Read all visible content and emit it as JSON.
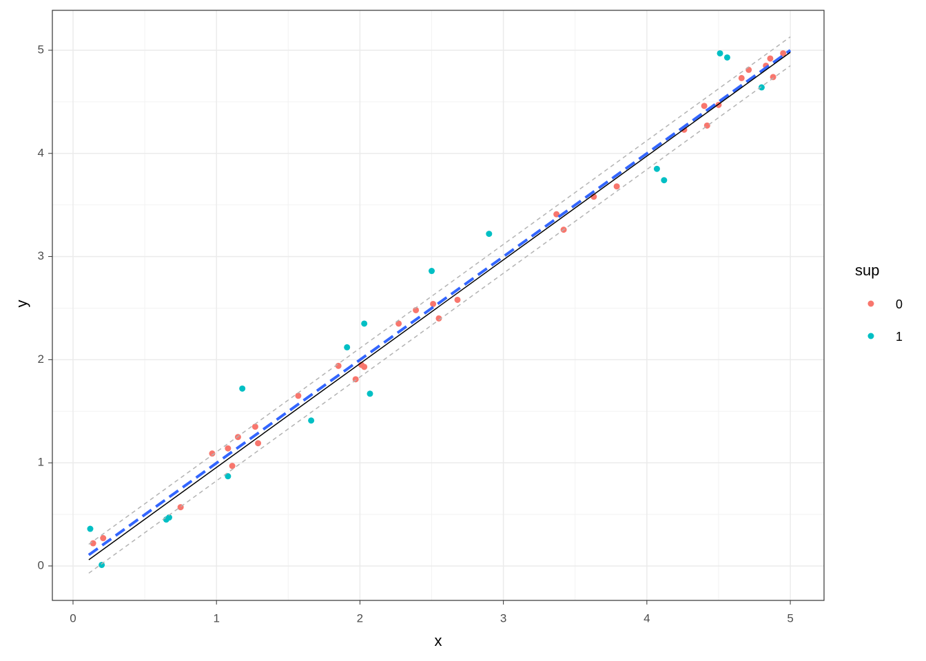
{
  "chart_data": {
    "type": "scatter",
    "x_label": "x",
    "y_label": "y",
    "legend_title": "sup",
    "legend_position": "right",
    "grid": true,
    "minor_grid": true,
    "xlim": [
      -0.144,
      5.235
    ],
    "ylim": [
      -0.334,
      5.387
    ],
    "xticks": [
      0,
      1,
      2,
      3,
      4,
      5
    ],
    "yticks": [
      0,
      1,
      2,
      3,
      4,
      5
    ],
    "series": [
      {
        "name": "0",
        "color": "#F8766D",
        "x": [
          0.14,
          0.21,
          0.75,
          0.97,
          1.08,
          1.11,
          1.15,
          1.27,
          1.29,
          1.57,
          1.85,
          1.97,
          2.01,
          2.03,
          2.27,
          2.39,
          2.51,
          2.55,
          2.68,
          3.37,
          3.42,
          3.63,
          3.79,
          4.26,
          4.4,
          4.42,
          4.5,
          4.66,
          4.71,
          4.83,
          4.86,
          4.88,
          4.95
        ],
        "values": [
          0.22,
          0.27,
          0.57,
          1.09,
          1.14,
          0.97,
          1.25,
          1.35,
          1.19,
          1.65,
          1.94,
          1.81,
          1.95,
          1.93,
          2.35,
          2.48,
          2.54,
          2.4,
          2.58,
          3.41,
          3.26,
          3.58,
          3.68,
          4.23,
          4.46,
          4.27,
          4.47,
          4.73,
          4.81,
          4.85,
          4.92,
          4.74,
          4.97
        ]
      },
      {
        "name": "1",
        "color": "#00BFC4",
        "x": [
          0.12,
          0.2,
          0.65,
          0.67,
          1.08,
          1.18,
          1.66,
          1.91,
          2.03,
          2.07,
          2.5,
          2.9,
          4.07,
          4.12,
          4.51,
          4.56,
          4.8
        ],
        "values": [
          0.36,
          0.01,
          0.45,
          0.47,
          0.87,
          1.72,
          1.41,
          2.12,
          2.35,
          1.67,
          2.86,
          3.22,
          3.85,
          3.74,
          4.97,
          4.93,
          4.64
        ]
      }
    ],
    "lines": [
      {
        "color": "#B3B3B3",
        "dash": true,
        "width": 1.5,
        "x": [
          0.11,
          5.0
        ],
        "values": [
          0.21,
          5.13
        ]
      },
      {
        "color": "#B3B3B3",
        "dash": true,
        "width": 1.5,
        "x": [
          0.11,
          5.0
        ],
        "values": [
          -0.07,
          4.85
        ]
      },
      {
        "color": "#3366FF",
        "dash": true,
        "width": 4,
        "x": [
          0.11,
          5.0
        ],
        "values": [
          0.107,
          5.0
        ]
      },
      {
        "color": "#000000",
        "dash": false,
        "width": 1.5,
        "x": [
          0.11,
          5.0
        ],
        "values": [
          0.06,
          4.98
        ]
      }
    ]
  }
}
